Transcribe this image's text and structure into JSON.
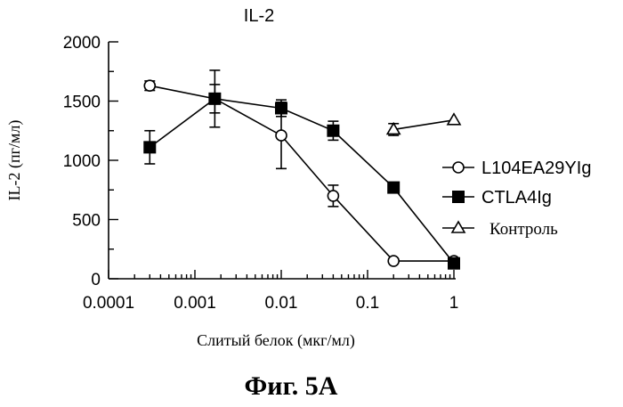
{
  "chart_data": {
    "type": "line",
    "title": "IL-2",
    "xlabel": "Слитый белок (мкг/мл)",
    "ylabel": "IL-2 (пг/мл)",
    "xscale": "log",
    "xlim": [
      0.0001,
      1
    ],
    "ylim": [
      0,
      2000
    ],
    "xticks": [
      "0.0001",
      "0.001",
      "0.01",
      "0.1",
      "1"
    ],
    "yticks": [
      "0",
      "500",
      "1000",
      "1500",
      "2000"
    ],
    "legend_position": "right",
    "series": [
      {
        "name": "L104EA29YIg",
        "marker": "open-circle",
        "x": [
          0.0003,
          0.0017,
          0.01,
          0.04,
          0.2,
          1
        ],
        "y": [
          1630,
          1520,
          1210,
          700,
          150,
          150
        ],
        "err": [
          40,
          120,
          280,
          90,
          0,
          0
        ]
      },
      {
        "name": "CTLA4Ig",
        "marker": "filled-square",
        "x": [
          0.0003,
          0.0017,
          0.01,
          0.04,
          0.2,
          1
        ],
        "y": [
          1110,
          1520,
          1440,
          1250,
          770,
          130
        ],
        "err": [
          140,
          240,
          70,
          80,
          0,
          0
        ]
      },
      {
        "name": "Контроль",
        "marker": "open-triangle",
        "x": [
          0.2,
          1
        ],
        "y": [
          1260,
          1340
        ],
        "err": [
          50,
          0
        ]
      }
    ]
  },
  "caption": "Фиг. 5A"
}
